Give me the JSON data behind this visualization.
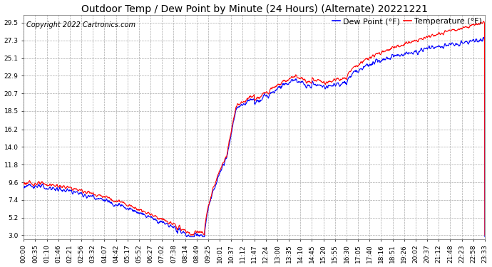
{
  "title": "Outdoor Temp / Dew Point by Minute (24 Hours) (Alternate) 20221221",
  "copyright": "Copyright 2022 Cartronics.com",
  "legend_dew": "Dew Point (°F)",
  "legend_temp": "Temperature (°F)",
  "dew_color": "#0000ff",
  "temp_color": "#ff0000",
  "background_color": "#ffffff",
  "grid_color": "#aaaaaa",
  "yticks": [
    3.0,
    5.2,
    7.4,
    9.6,
    11.8,
    14.0,
    16.2,
    18.5,
    20.7,
    22.9,
    25.1,
    27.3,
    29.5
  ],
  "ylim": [
    2.5,
    30.5
  ],
  "xtick_labels": [
    "00:00",
    "00:35",
    "01:10",
    "01:46",
    "02:21",
    "02:56",
    "03:32",
    "04:07",
    "04:42",
    "05:17",
    "05:52",
    "06:27",
    "07:02",
    "07:38",
    "08:14",
    "08:49",
    "09:25",
    "10:01",
    "10:37",
    "11:12",
    "11:47",
    "12:24",
    "13:00",
    "13:35",
    "14:10",
    "14:45",
    "15:20",
    "15:55",
    "16:30",
    "17:05",
    "17:40",
    "18:16",
    "18:51",
    "19:26",
    "20:02",
    "20:37",
    "21:12",
    "21:48",
    "22:23",
    "22:58",
    "23:33"
  ],
  "title_fontsize": 10,
  "copyright_fontsize": 7,
  "legend_fontsize": 8,
  "tick_fontsize": 6.5,
  "line_width": 0.8
}
